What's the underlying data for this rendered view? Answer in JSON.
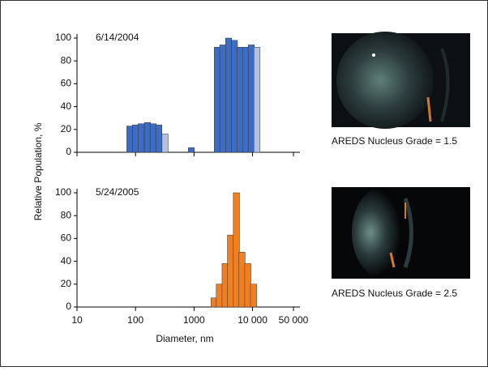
{
  "chart_data": [
    {
      "type": "bar",
      "title": "6/14/2004",
      "ylabel": "Relative Population, %",
      "x": [
        80,
        100,
        125,
        160,
        200,
        250,
        320,
        900,
        2500,
        3100,
        3900,
        4900,
        6100,
        7600,
        9500,
        11900
      ],
      "values": [
        23,
        24,
        25,
        26,
        25,
        24,
        16,
        4,
        92,
        94,
        100,
        98,
        92,
        92,
        94,
        92
      ],
      "colors": [
        "#3d6cc0",
        "#3d6cc0",
        "#3d6cc0",
        "#3d6cc0",
        "#3d6cc0",
        "#3d6cc0",
        "#b3c0e2",
        "#3d6cc0",
        "#3d6cc0",
        "#3d6cc0",
        "#3d6cc0",
        "#3d6cc0",
        "#3d6cc0",
        "#3d6cc0",
        "#3d6cc0",
        "#b3c0e2"
      ],
      "xlim": [
        10,
        50000
      ],
      "xticks": [
        10,
        100,
        1000,
        10000,
        50000
      ],
      "xlog": true,
      "ylim": [
        0,
        100
      ],
      "yticks": [
        0,
        20,
        40,
        60,
        80,
        100
      ]
    },
    {
      "type": "bar",
      "title": "5/24/2005",
      "xlabel": "Diameter, nm",
      "x": [
        2200,
        2700,
        3400,
        4200,
        5300,
        6600,
        8300,
        10400
      ],
      "values": [
        8,
        20,
        38,
        63,
        100,
        48,
        38,
        20
      ],
      "colors": [
        "#f07f22",
        "#f07f22",
        "#f07f22",
        "#f07f22",
        "#f07f22",
        "#f07f22",
        "#f07f22",
        "#f07f22"
      ],
      "xlim": [
        10,
        50000
      ],
      "xticks": [
        10,
        100,
        1000,
        {
          "value": 10000,
          "label": "10 000"
        },
        {
          "value": 50000,
          "label": "50 000"
        }
      ],
      "xlog": true,
      "ylim": [
        0,
        100
      ],
      "yticks": [
        0,
        20,
        40,
        60,
        80,
        100
      ]
    }
  ],
  "images": [
    {
      "caption": "AREDS Nucleus Grade = 1.5"
    },
    {
      "caption": "AREDS Nucleus Grade = 2.5"
    }
  ]
}
